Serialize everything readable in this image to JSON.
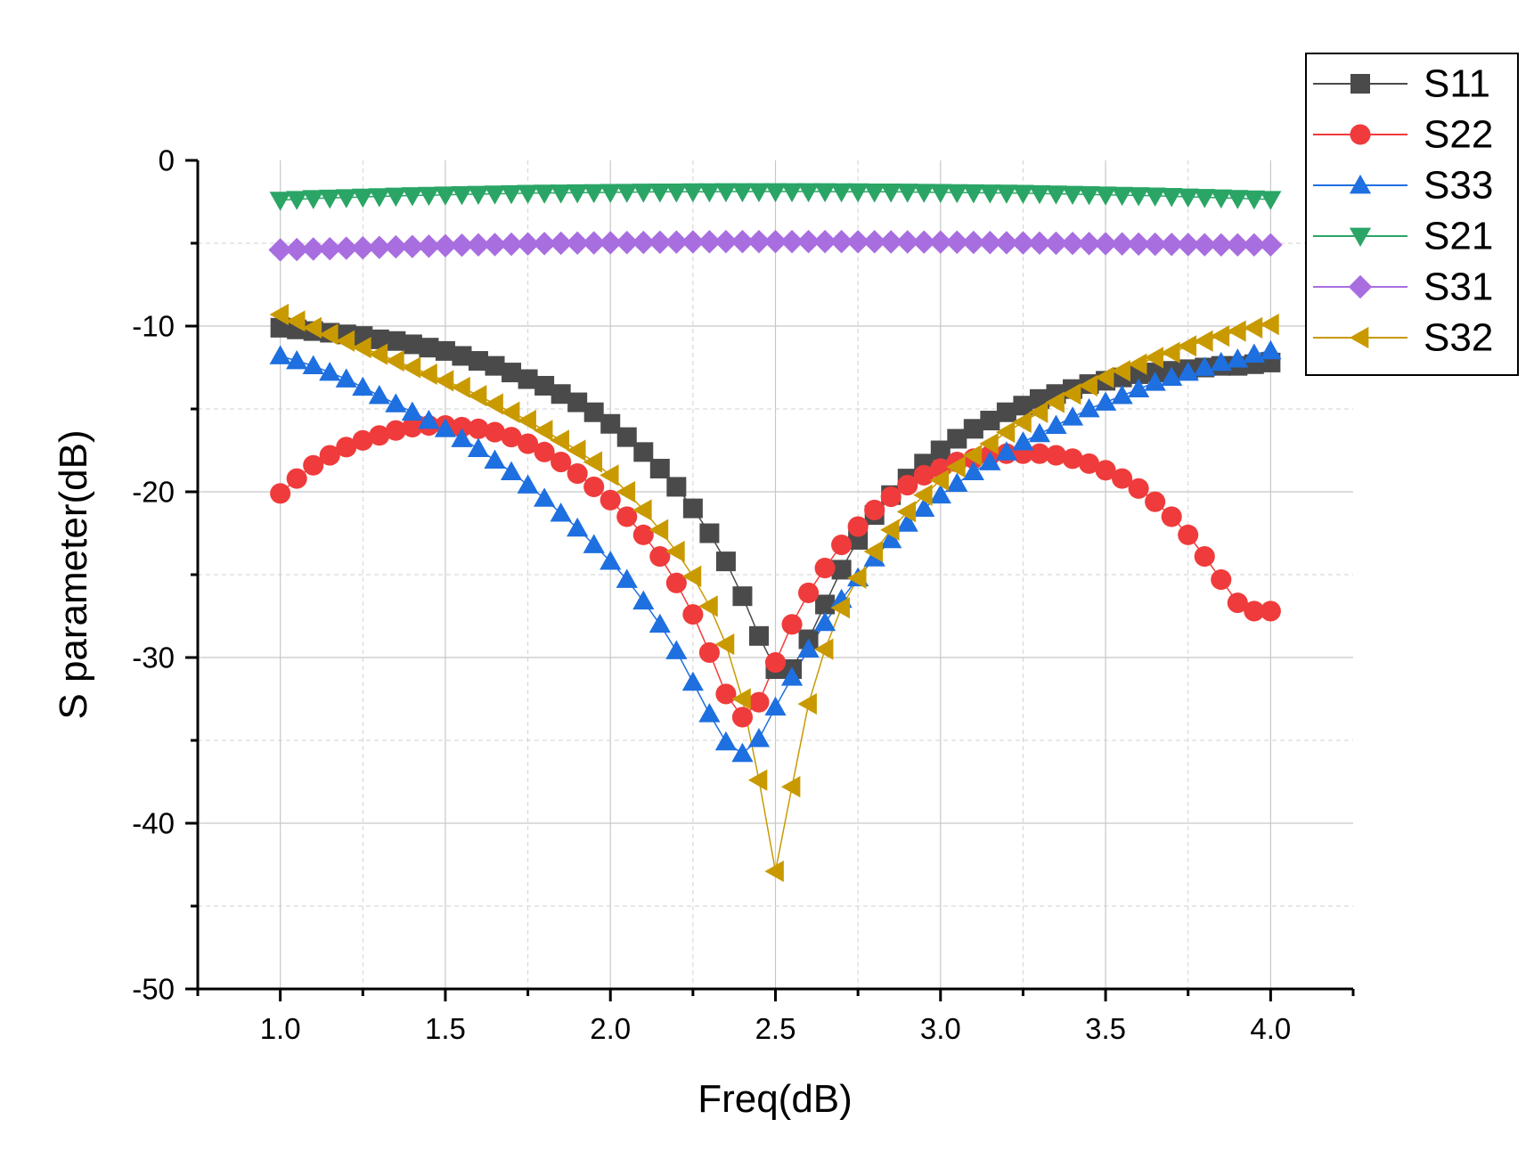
{
  "chart_data": {
    "type": "line",
    "title": "",
    "xlabel": "Freq(dB)",
    "ylabel": "S parameter(dB)",
    "xlim": [
      0.75,
      4.25
    ],
    "ylim": [
      -50,
      0
    ],
    "xticks": [
      "1.0",
      "1.5",
      "2.0",
      "2.5",
      "3.0",
      "3.5",
      "4.0"
    ],
    "yticks": [
      "0",
      "-10",
      "-20",
      "-30",
      "-40",
      "-50"
    ],
    "grid": true,
    "legend_position": "top-right",
    "x": [
      1.0,
      1.05,
      1.1,
      1.15,
      1.2,
      1.25,
      1.3,
      1.35,
      1.4,
      1.45,
      1.5,
      1.55,
      1.6,
      1.65,
      1.7,
      1.75,
      1.8,
      1.85,
      1.9,
      1.95,
      2.0,
      2.05,
      2.1,
      2.15,
      2.2,
      2.25,
      2.3,
      2.35,
      2.4,
      2.45,
      2.5,
      2.55,
      2.6,
      2.65,
      2.7,
      2.75,
      2.8,
      2.85,
      2.9,
      2.95,
      3.0,
      3.05,
      3.1,
      3.15,
      3.2,
      3.25,
      3.3,
      3.35,
      3.4,
      3.45,
      3.5,
      3.55,
      3.6,
      3.65,
      3.7,
      3.75,
      3.8,
      3.85,
      3.9,
      3.95,
      4.0
    ],
    "series": [
      {
        "name": "S11",
        "color": "#4a4a4a",
        "marker": "square",
        "values": [
          -10.1,
          -10.2,
          -10.3,
          -10.4,
          -10.5,
          -10.6,
          -10.8,
          -10.9,
          -11.1,
          -11.3,
          -11.5,
          -11.8,
          -12.1,
          -12.4,
          -12.8,
          -13.2,
          -13.6,
          -14.1,
          -14.6,
          -15.2,
          -15.9,
          -16.7,
          -17.6,
          -18.6,
          -19.7,
          -21.0,
          -22.5,
          -24.2,
          -26.3,
          -28.7,
          -30.7,
          -30.7,
          -28.9,
          -26.8,
          -24.7,
          -22.9,
          -21.4,
          -20.2,
          -19.2,
          -18.3,
          -17.5,
          -16.8,
          -16.2,
          -15.7,
          -15.2,
          -14.8,
          -14.4,
          -14.1,
          -13.8,
          -13.5,
          -13.3,
          -13.1,
          -12.9,
          -12.8,
          -12.7,
          -12.6,
          -12.5,
          -12.4,
          -12.4,
          -12.3,
          -12.2
        ]
      },
      {
        "name": "S22",
        "color": "#ef3b3b",
        "marker": "circle",
        "values": [
          -20.1,
          -19.2,
          -18.4,
          -17.8,
          -17.3,
          -16.9,
          -16.6,
          -16.3,
          -16.1,
          -16.0,
          -16.0,
          -16.1,
          -16.2,
          -16.4,
          -16.7,
          -17.1,
          -17.6,
          -18.2,
          -18.9,
          -19.7,
          -20.5,
          -21.5,
          -22.6,
          -23.9,
          -25.5,
          -27.4,
          -29.7,
          -32.2,
          -33.6,
          -32.7,
          -30.3,
          -28.0,
          -26.1,
          -24.6,
          -23.2,
          -22.1,
          -21.1,
          -20.3,
          -19.6,
          -19.0,
          -18.6,
          -18.2,
          -18.0,
          -17.8,
          -17.7,
          -17.7,
          -17.7,
          -17.8,
          -18.0,
          -18.3,
          -18.7,
          -19.2,
          -19.8,
          -20.6,
          -21.5,
          -22.6,
          -23.9,
          -25.3,
          -26.7,
          -27.2,
          -27.2
        ]
      },
      {
        "name": "S33",
        "color": "#1e6fe0",
        "marker": "triangle-up",
        "values": [
          -11.8,
          -12.1,
          -12.4,
          -12.8,
          -13.2,
          -13.7,
          -14.2,
          -14.7,
          -15.2,
          -15.7,
          -16.2,
          -16.8,
          -17.4,
          -18.1,
          -18.8,
          -19.6,
          -20.4,
          -21.3,
          -22.2,
          -23.2,
          -24.2,
          -25.3,
          -26.6,
          -28.0,
          -29.6,
          -31.5,
          -33.4,
          -35.1,
          -35.8,
          -34.9,
          -33.0,
          -31.2,
          -29.5,
          -27.9,
          -26.5,
          -25.2,
          -24.0,
          -22.9,
          -21.9,
          -21.0,
          -20.2,
          -19.5,
          -18.8,
          -18.2,
          -17.6,
          -17.0,
          -16.5,
          -16.0,
          -15.5,
          -15.0,
          -14.6,
          -14.2,
          -13.8,
          -13.4,
          -13.1,
          -12.8,
          -12.5,
          -12.2,
          -12.0,
          -11.7,
          -11.5
        ]
      },
      {
        "name": "S21",
        "color": "#2aa566",
        "marker": "triangle-down",
        "values": [
          -2.4,
          -2.35,
          -2.3,
          -2.27,
          -2.24,
          -2.21,
          -2.18,
          -2.15,
          -2.12,
          -2.1,
          -2.08,
          -2.06,
          -2.04,
          -2.02,
          -2.0,
          -1.98,
          -1.97,
          -1.96,
          -1.95,
          -1.94,
          -1.93,
          -1.92,
          -1.91,
          -1.9,
          -1.9,
          -1.89,
          -1.89,
          -1.88,
          -1.88,
          -1.88,
          -1.88,
          -1.88,
          -1.88,
          -1.88,
          -1.89,
          -1.89,
          -1.9,
          -1.9,
          -1.91,
          -1.92,
          -1.93,
          -1.94,
          -1.95,
          -1.96,
          -1.97,
          -1.98,
          -2.0,
          -2.02,
          -2.04,
          -2.06,
          -2.08,
          -2.1,
          -2.12,
          -2.14,
          -2.17,
          -2.2,
          -2.23,
          -2.26,
          -2.29,
          -2.32,
          -2.35
        ]
      },
      {
        "name": "S31",
        "color": "#a86ee0",
        "marker": "diamond",
        "values": [
          -5.4,
          -5.38,
          -5.35,
          -5.33,
          -5.3,
          -5.28,
          -5.25,
          -5.22,
          -5.2,
          -5.18,
          -5.15,
          -5.12,
          -5.1,
          -5.08,
          -5.06,
          -5.04,
          -5.02,
          -5.0,
          -4.99,
          -4.98,
          -4.97,
          -4.96,
          -4.95,
          -4.94,
          -4.93,
          -4.92,
          -4.91,
          -4.9,
          -4.9,
          -4.9,
          -4.9,
          -4.9,
          -4.9,
          -4.9,
          -4.9,
          -4.91,
          -4.91,
          -4.92,
          -4.92,
          -4.93,
          -4.93,
          -4.94,
          -4.95,
          -4.96,
          -4.97,
          -4.98,
          -4.99,
          -5.0,
          -5.01,
          -5.02,
          -5.03,
          -5.04,
          -5.05,
          -5.06,
          -5.07,
          -5.08,
          -5.09,
          -5.1,
          -5.1,
          -5.1,
          -5.1
        ]
      },
      {
        "name": "S32",
        "color": "#c99a00",
        "marker": "triangle-left",
        "values": [
          -9.3,
          -9.7,
          -10.1,
          -10.5,
          -10.9,
          -11.3,
          -11.7,
          -12.1,
          -12.5,
          -12.9,
          -13.3,
          -13.7,
          -14.2,
          -14.7,
          -15.2,
          -15.7,
          -16.3,
          -16.9,
          -17.5,
          -18.2,
          -19.0,
          -20.0,
          -21.1,
          -22.3,
          -23.6,
          -25.1,
          -26.9,
          -29.2,
          -32.5,
          -37.4,
          -42.9,
          -37.8,
          -32.8,
          -29.5,
          -27.0,
          -25.2,
          -23.6,
          -22.3,
          -21.2,
          -20.2,
          -19.3,
          -18.5,
          -17.8,
          -17.1,
          -16.4,
          -15.8,
          -15.2,
          -14.6,
          -14.1,
          -13.6,
          -13.1,
          -12.7,
          -12.3,
          -11.9,
          -11.6,
          -11.2,
          -10.9,
          -10.6,
          -10.3,
          -10.1,
          -9.9
        ]
      }
    ]
  }
}
